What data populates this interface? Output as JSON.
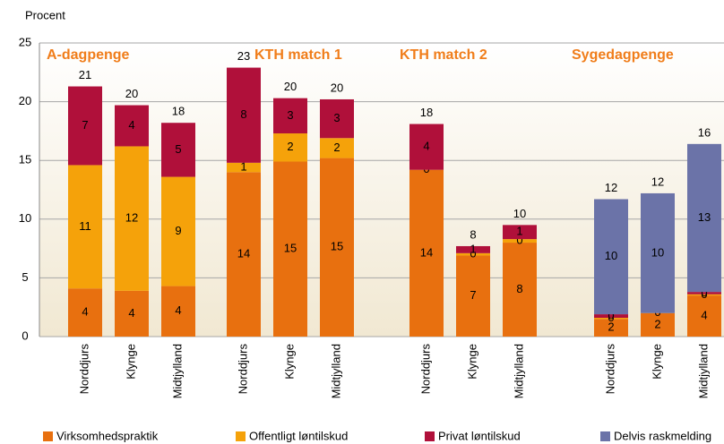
{
  "chart_data": {
    "type": "bar",
    "stacked": true,
    "y_label": "Procent",
    "group_labels": [
      "A-dagpenge",
      "KTH match 1",
      "KTH match 2",
      "Sygedagpenge"
    ],
    "categories": [
      "Norddjurs",
      "Klynge",
      "Midtjylland",
      "Norddjurs",
      "Klynge",
      "Midtjylland",
      "Norddjurs",
      "Klynge",
      "Midtjylland",
      "Norddjurs",
      "Klynge",
      "Midtjylland"
    ],
    "series": [
      {
        "name": "Virksomhedspraktik",
        "color": "#e8700f",
        "values": [
          4.1,
          3.9,
          4.3,
          14.0,
          14.9,
          15.2,
          14.2,
          6.9,
          8.0,
          1.5,
          2.0,
          3.5
        ],
        "value_labels": [
          "4",
          "4",
          "4",
          "14",
          "15",
          "15",
          "14",
          "7",
          "8",
          "2",
          "2",
          "4"
        ]
      },
      {
        "name": "Offentligt løntilskud",
        "color": "#f5a20a",
        "values": [
          10.5,
          12.3,
          9.3,
          0.8,
          2.4,
          1.7,
          0,
          0.2,
          0.3,
          0.1,
          0,
          0.1
        ],
        "value_labels": [
          "11",
          "12",
          "9",
          "1",
          "2",
          "2",
          "0",
          "0",
          "0",
          "0",
          "0",
          "0"
        ]
      },
      {
        "name": "Privat løntilskud",
        "color": "#b0103a",
        "values": [
          6.7,
          3.5,
          4.6,
          8.1,
          3.0,
          3.3,
          3.9,
          0.6,
          1.2,
          0.3,
          null,
          0.2
        ],
        "value_labels": [
          "7",
          "4",
          "5",
          "8",
          "3",
          "3",
          "4",
          "1",
          "1",
          "0",
          null,
          "0"
        ]
      },
      {
        "name": "Delvis raskmelding",
        "color": "#6b73a8",
        "values": [
          null,
          null,
          null,
          null,
          null,
          null,
          null,
          null,
          null,
          9.8,
          10.2,
          12.6
        ],
        "value_labels": [
          null,
          null,
          null,
          null,
          null,
          null,
          null,
          null,
          null,
          "10",
          "10",
          "13"
        ]
      }
    ],
    "total_labels": [
      "21",
      "20",
      "18",
      "23",
      "20",
      "20",
      "18",
      "8",
      "10",
      "12",
      "12",
      "16"
    ],
    "ylim": [
      0,
      25
    ],
    "yticks": [
      0,
      5,
      10,
      15,
      20,
      25
    ],
    "grid": true
  }
}
